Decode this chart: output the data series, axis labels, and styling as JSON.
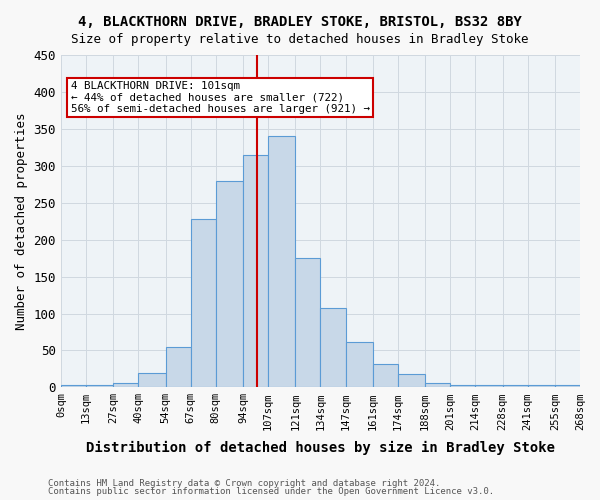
{
  "title1": "4, BLACKTHORN DRIVE, BRADLEY STOKE, BRISTOL, BS32 8BY",
  "title2": "Size of property relative to detached houses in Bradley Stoke",
  "xlabel": "Distribution of detached houses by size in Bradley Stoke",
  "ylabel": "Number of detached properties",
  "bar_color": "#c8d8e8",
  "bar_edge_color": "#5b9bd5",
  "bar_left_edges": [
    0,
    13,
    27,
    40,
    54,
    67,
    80,
    94,
    107,
    121,
    134,
    147,
    161,
    174,
    188,
    201,
    214,
    228,
    241,
    255
  ],
  "bar_heights": [
    3,
    3,
    6,
    20,
    54,
    228,
    280,
    315,
    340,
    175,
    108,
    62,
    32,
    18,
    6,
    3,
    3,
    3,
    3,
    3
  ],
  "bar_widths": [
    13,
    14,
    13,
    14,
    13,
    13,
    14,
    13,
    14,
    13,
    13,
    14,
    13,
    14,
    13,
    13,
    14,
    13,
    14,
    13
  ],
  "xtick_labels": [
    "0sqm",
    "13sqm",
    "27sqm",
    "40sqm",
    "54sqm",
    "67sqm",
    "80sqm",
    "94sqm",
    "107sqm",
    "121sqm",
    "134sqm",
    "147sqm",
    "161sqm",
    "174sqm",
    "188sqm",
    "201sqm",
    "214sqm",
    "228sqm",
    "241sqm",
    "255sqm",
    "268sqm"
  ],
  "xtick_positions": [
    0,
    13,
    27,
    40,
    54,
    67,
    80,
    94,
    107,
    121,
    134,
    147,
    161,
    174,
    188,
    201,
    214,
    228,
    241,
    255,
    268
  ],
  "ylim": [
    0,
    450
  ],
  "xlim": [
    0,
    268
  ],
  "red_line_x": 101,
  "red_line_color": "#cc0000",
  "annotation_text": "4 BLACKTHORN DRIVE: 101sqm\n← 44% of detached houses are smaller (722)\n56% of semi-detached houses are larger (921) →",
  "annotation_box_color": "#ffffff",
  "annotation_box_edge": "#cc0000",
  "footnote1": "Contains HM Land Registry data © Crown copyright and database right 2024.",
  "footnote2": "Contains public sector information licensed under the Open Government Licence v3.0.",
  "grid_color": "#d0d8e0",
  "bg_color": "#eef3f7"
}
